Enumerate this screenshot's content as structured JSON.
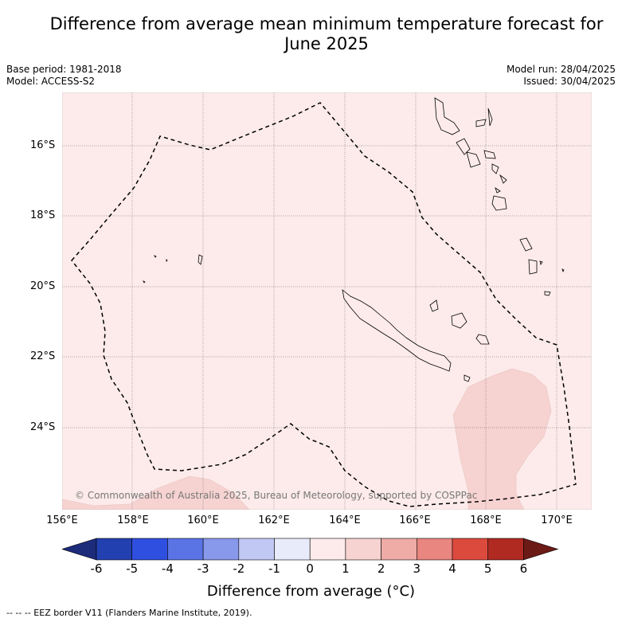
{
  "title": "Difference from average mean minimum temperature forecast for June 2025",
  "base_period": "Base period: 1981-2018",
  "model": "Model: ACCESS-S2",
  "model_run": "Model run: 28/04/2025",
  "issued": "Issued: 30/04/2025",
  "lat_labels": [
    "16°S",
    "18°S",
    "20°S",
    "22°S",
    "24°S"
  ],
  "lon_labels": [
    "156°E",
    "158°E",
    "160°E",
    "162°E",
    "164°E",
    "166°E",
    "168°E",
    "170°E"
  ],
  "copyright": "© Commonwealth of Australia 2025, Bureau of Meteorology, supported by COSPPac",
  "colorbar": {
    "title": "Difference from average (°C)",
    "ticks": [
      "-6",
      "-5",
      "-4",
      "-3",
      "-2",
      "-1",
      "0",
      "1",
      "2",
      "3",
      "4",
      "5",
      "6"
    ],
    "colors": [
      "#1c2b7a",
      "#2340b0",
      "#2f4fe0",
      "#5a74e6",
      "#8898ea",
      "#c2c8f4",
      "#e8ebfa",
      "#fcebea",
      "#f6d3d1",
      "#efaba6",
      "#e8867f",
      "#dc4a3d",
      "#b02a22",
      "#6b1a16"
    ]
  },
  "footer": "-- -- -- EEZ border V11 (Flanders Marine Institute, 2019).",
  "map": {
    "background_color": "#fcebea",
    "anomaly_patch_color": "#f6d3d1",
    "coastline_color": "#000000"
  }
}
